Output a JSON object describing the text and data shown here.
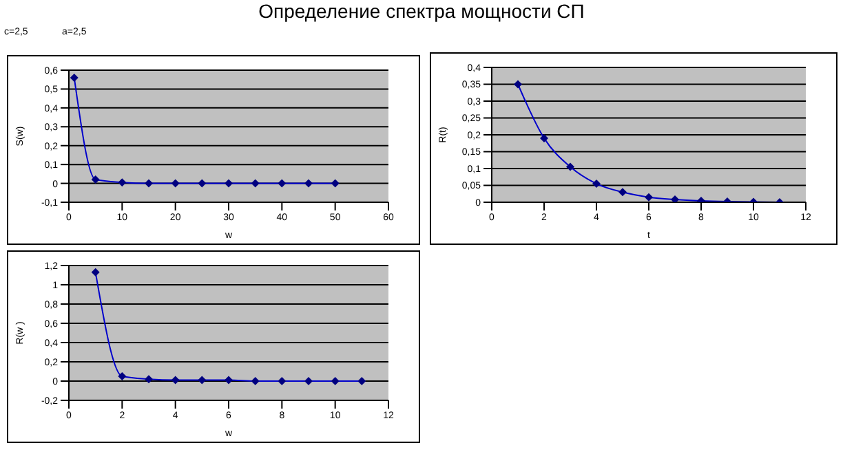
{
  "chart_data": [
    {
      "type": "line",
      "title": "Определение спектра мощности СП",
      "annotations": [
        "c=2,5",
        "a=2,5"
      ],
      "xlabel": "w",
      "ylabel": "S(w)",
      "x": [
        1,
        5,
        10,
        15,
        20,
        25,
        30,
        35,
        40,
        45,
        50
      ],
      "series": [
        {
          "color": "#000080",
          "values": [
            0.56,
            0.02,
            0.005,
            0,
            0,
            0,
            0,
            0,
            0,
            0,
            0
          ]
        }
      ],
      "xlim": [
        0,
        60
      ],
      "xticks": [
        0,
        10,
        20,
        30,
        40,
        50,
        60
      ],
      "ylim": [
        -0.1,
        0.6
      ],
      "yticks": [
        {
          "value": -0.1,
          "label": "-0,1"
        },
        {
          "value": 0,
          "label": "0"
        },
        {
          "value": 0.1,
          "label": "0,1"
        },
        {
          "value": 0.2,
          "label": "0,2"
        },
        {
          "value": 0.3,
          "label": "0,3"
        },
        {
          "value": 0.4,
          "label": "0,4"
        },
        {
          "value": 0.5,
          "label": "0,5"
        },
        {
          "value": 0.6,
          "label": "0,6"
        }
      ],
      "grid": "y",
      "marker": "diamond",
      "line_style": "solid",
      "legend": false
    },
    {
      "type": "line",
      "xlabel": "t",
      "ylabel": "R(t)",
      "x": [
        1,
        2,
        3,
        4,
        5,
        6,
        7,
        8,
        9,
        10,
        11
      ],
      "series": [
        {
          "color": "#000080",
          "values": [
            0.35,
            0.19,
            0.105,
            0.055,
            0.03,
            0.015,
            0.008,
            0.004,
            0.002,
            0.001,
            0
          ]
        }
      ],
      "xlim": [
        0,
        12
      ],
      "xticks": [
        0,
        2,
        4,
        6,
        8,
        10,
        12
      ],
      "ylim": [
        0,
        0.4
      ],
      "yticks": [
        {
          "value": 0,
          "label": "0"
        },
        {
          "value": 0.05,
          "label": "0,05"
        },
        {
          "value": 0.1,
          "label": "0,1"
        },
        {
          "value": 0.15,
          "label": "0,15"
        },
        {
          "value": 0.2,
          "label": "0,2"
        },
        {
          "value": 0.25,
          "label": "0,25"
        },
        {
          "value": 0.3,
          "label": "0,3"
        },
        {
          "value": 0.35,
          "label": "0,35"
        },
        {
          "value": 0.4,
          "label": "0,4"
        }
      ],
      "grid": "y",
      "marker": "diamond",
      "line_style": "solid",
      "legend": false
    },
    {
      "type": "line",
      "xlabel": "w",
      "ylabel": "R(w )",
      "x": [
        1,
        2,
        3,
        4,
        5,
        6,
        7,
        8,
        9,
        10,
        11
      ],
      "series": [
        {
          "color": "#000080",
          "values": [
            1.13,
            0.05,
            0.02,
            0.01,
            0.01,
            0.01,
            0,
            0,
            0,
            0,
            0
          ]
        }
      ],
      "xlim": [
        0,
        12
      ],
      "xticks": [
        0,
        2,
        4,
        6,
        8,
        10,
        12
      ],
      "ylim": [
        -0.2,
        1.2
      ],
      "yticks": [
        {
          "value": -0.2,
          "label": "-0,2"
        },
        {
          "value": 0,
          "label": "0"
        },
        {
          "value": 0.2,
          "label": "0,2"
        },
        {
          "value": 0.4,
          "label": "0,4"
        },
        {
          "value": 0.6,
          "label": "0,6"
        },
        {
          "value": 0.8,
          "label": "0,8"
        },
        {
          "value": 1,
          "label": "1"
        },
        {
          "value": 1.2,
          "label": "1,2"
        }
      ],
      "grid": "y",
      "marker": "diamond",
      "line_style": "solid",
      "legend": false
    }
  ]
}
